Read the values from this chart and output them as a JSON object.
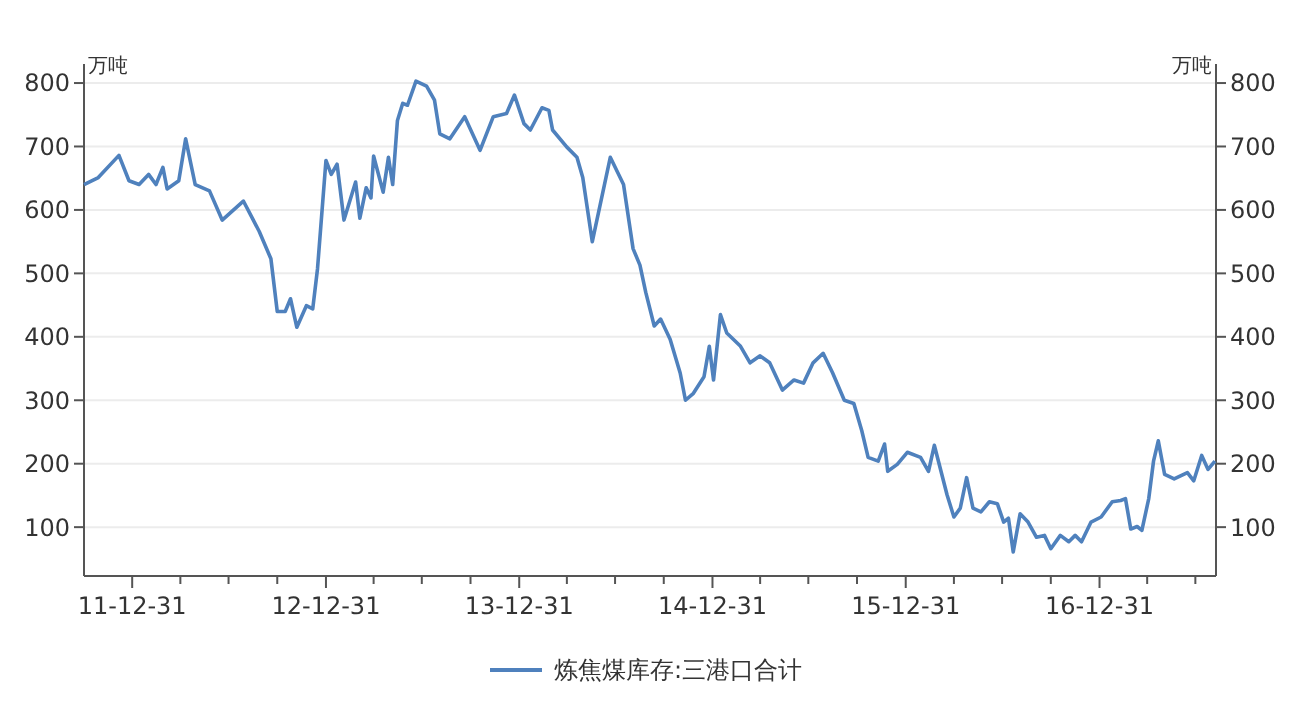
{
  "chart_data": {
    "type": "line",
    "ylabel": "万吨",
    "y2label": "万吨",
    "xlim": [
      "2011-10-01",
      "2017-08-08"
    ],
    "xticks": [
      {
        "value": "2011-12-31",
        "label": "11-12-31"
      },
      {
        "value": "2012-03-31",
        "label": null
      },
      {
        "value": "2012-06-30",
        "label": null
      },
      {
        "value": "2012-09-30",
        "label": null
      },
      {
        "value": "2012-12-31",
        "label": "12-12-31"
      },
      {
        "value": "2013-03-31",
        "label": null
      },
      {
        "value": "2013-06-30",
        "label": null
      },
      {
        "value": "2013-09-30",
        "label": null
      },
      {
        "value": "2013-12-31",
        "label": "13-12-31"
      },
      {
        "value": "2014-03-31",
        "label": null
      },
      {
        "value": "2014-06-30",
        "label": null
      },
      {
        "value": "2014-09-30",
        "label": null
      },
      {
        "value": "2014-12-31",
        "label": "14-12-31"
      },
      {
        "value": "2015-03-31",
        "label": null
      },
      {
        "value": "2015-06-30",
        "label": null
      },
      {
        "value": "2015-09-30",
        "label": null
      },
      {
        "value": "2015-12-31",
        "label": "15-12-31"
      },
      {
        "value": "2016-03-31",
        "label": null
      },
      {
        "value": "2016-06-30",
        "label": null
      },
      {
        "value": "2016-09-30",
        "label": null
      },
      {
        "value": "2016-12-31",
        "label": "16-12-31"
      },
      {
        "value": "2017-03-31",
        "label": null
      },
      {
        "value": "2017-06-30",
        "label": null
      }
    ],
    "ylim": [
      23,
      830
    ],
    "yticks": [
      100,
      200,
      300,
      400,
      500,
      600,
      700,
      800
    ],
    "y2lim": [
      23,
      830
    ],
    "y2ticks": [
      100,
      200,
      300,
      400,
      500,
      600,
      700,
      800
    ],
    "grid": "y",
    "legend": "bottom",
    "line_style": "solid",
    "marker": "none",
    "x": [
      "2011-10-01",
      "2011-10-28",
      "2011-12-06",
      "2011-12-25",
      "2012-01-13",
      "2012-01-31",
      "2012-02-14",
      "2012-02-27",
      "2012-03-06",
      "2012-03-28",
      "2012-04-10",
      "2012-04-28",
      "2012-05-25",
      "2012-06-18",
      "2012-07-28",
      "2012-08-27",
      "2012-09-18",
      "2012-09-30",
      "2012-10-15",
      "2012-10-25",
      "2012-11-06",
      "2012-11-24",
      "2012-12-06",
      "2012-12-15",
      "2012-12-31",
      "2013-01-10",
      "2013-01-21",
      "2013-02-03",
      "2013-02-25",
      "2013-03-05",
      "2013-03-17",
      "2013-03-26",
      "2013-03-31",
      "2013-04-18",
      "2013-04-28",
      "2013-05-06",
      "2013-05-15",
      "2013-05-25",
      "2013-06-03",
      "2013-06-19",
      "2013-07-09",
      "2013-07-24",
      "2013-08-03",
      "2013-08-22",
      "2013-09-19",
      "2013-10-18",
      "2013-11-12",
      "2013-12-07",
      "2013-12-22",
      "2014-01-09",
      "2014-01-21",
      "2014-02-12",
      "2014-02-25",
      "2014-03-04",
      "2014-03-31",
      "2014-04-19",
      "2014-04-30",
      "2014-05-18",
      "2014-06-21",
      "2014-07-16",
      "2014-08-03",
      "2014-08-16",
      "2014-08-27",
      "2014-09-12",
      "2014-09-24",
      "2014-10-12",
      "2014-10-31",
      "2014-11-10",
      "2014-11-25",
      "2014-12-15",
      "2014-12-25",
      "2015-01-02",
      "2015-01-15",
      "2015-01-27",
      "2015-02-22",
      "2015-03-12",
      "2015-03-31",
      "2015-04-18",
      "2015-05-12",
      "2015-06-03",
      "2015-06-21",
      "2015-07-09",
      "2015-07-28",
      "2015-08-15",
      "2015-09-06",
      "2015-09-24",
      "2015-10-09",
      "2015-10-21",
      "2015-11-09",
      "2015-11-21",
      "2015-11-27",
      "2015-12-15",
      "2016-01-03",
      "2016-01-28",
      "2016-02-12",
      "2016-02-23",
      "2016-03-18",
      "2016-03-31",
      "2016-04-12",
      "2016-04-24",
      "2016-05-06",
      "2016-05-21",
      "2016-06-06",
      "2016-06-21",
      "2016-07-03",
      "2016-07-12",
      "2016-07-21",
      "2016-08-03",
      "2016-08-18",
      "2016-09-03",
      "2016-09-18",
      "2016-09-30",
      "2016-10-18",
      "2016-11-03",
      "2016-11-15",
      "2016-11-27",
      "2016-12-15",
      "2017-01-03",
      "2017-01-24",
      "2017-02-09",
      "2017-02-18",
      "2017-02-28",
      "2017-03-12",
      "2017-03-21",
      "2017-04-03",
      "2017-04-12",
      "2017-04-21",
      "2017-05-03",
      "2017-05-21",
      "2017-06-15",
      "2017-06-27",
      "2017-07-12",
      "2017-07-24",
      "2017-08-06"
    ],
    "series": [
      {
        "name": "炼焦煤库存:三港口合计",
        "color": "#4f81bd",
        "values": [
          640,
          651,
          686,
          646,
          640,
          656,
          640,
          667,
          633,
          646,
          712,
          640,
          630,
          584,
          614,
          566,
          523,
          440,
          440,
          460,
          415,
          449,
          444,
          507,
          678,
          656,
          672,
          584,
          644,
          587,
          635,
          619,
          685,
          628,
          683,
          640,
          741,
          768,
          765,
          803,
          795,
          773,
          720,
          712,
          747,
          694,
          747,
          752,
          781,
          736,
          726,
          761,
          757,
          726,
          699,
          683,
          651,
          550,
          683,
          640,
          539,
          513,
          470,
          417,
          428,
          396,
          343,
          300,
          311,
          337,
          385,
          332,
          435,
          406,
          385,
          359,
          370,
          359,
          316,
          332,
          327,
          359,
          374,
          343,
          300,
          295,
          252,
          210,
          204,
          231,
          188,
          199,
          218,
          210,
          188,
          229,
          151,
          116,
          130,
          178,
          130,
          124,
          140,
          137,
          108,
          114,
          61,
          121,
          108,
          84,
          87,
          66,
          87,
          77,
          87,
          77,
          108,
          116,
          140,
          142,
          145,
          97,
          101,
          95,
          145,
          204,
          236,
          183,
          176,
          186,
          173,
          213,
          191,
          204
        ]
      }
    ]
  }
}
